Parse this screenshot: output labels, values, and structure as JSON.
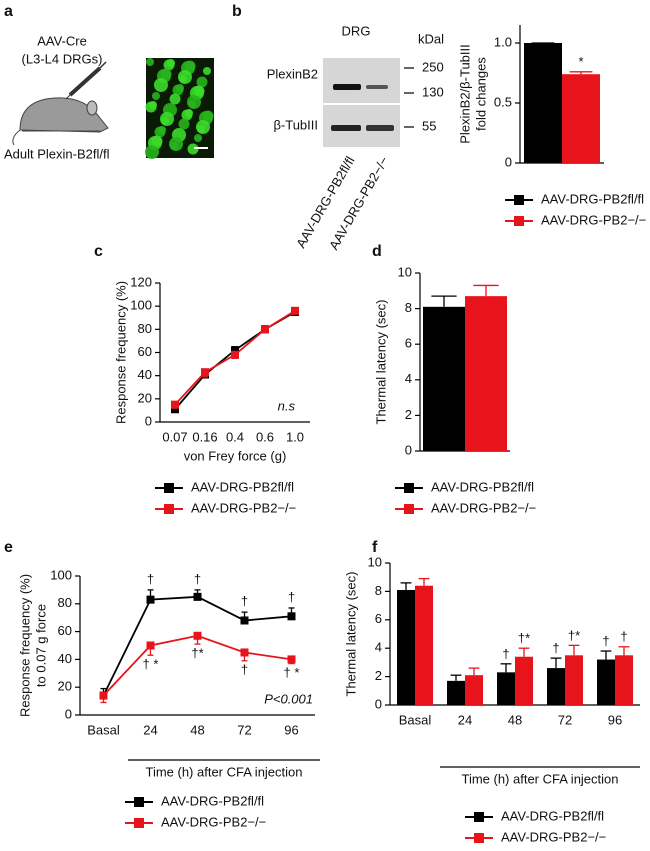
{
  "panel_a": {
    "label": "a",
    "lines": [
      "AAV-Cre",
      "(L3-L4 DRGs)"
    ],
    "caption": "Adult Plexin-B2fl/fl"
  },
  "blot": {
    "label": "b",
    "title": "DRG",
    "unit": "kDal",
    "bands": [
      "PlexinB2",
      "β-TubIII"
    ],
    "sizes": [
      "250",
      "130",
      "55"
    ],
    "lanes": [
      "AAV-DRG-PB2fl/fl",
      "AAV-DRG-PB2−/−"
    ]
  },
  "chart_data": [
    {
      "type": "bar",
      "categories": [
        null
      ],
      "ylabel": [
        "PlexinB2/β-TubIII",
        "fold changes"
      ],
      "ylim": [
        0,
        1.15
      ],
      "yticks": [
        0,
        0.5,
        {
          "value": 1,
          "label": "1.0"
        }
      ],
      "series": [
        {
          "name": "AAV-DRG-PB2fl/fl",
          "color": "#000000",
          "values": [
            1.0
          ],
          "errors": [
            0
          ]
        },
        {
          "name": "AAV-DRG-PB2−/−",
          "color": "#e8141b",
          "values": [
            0.74
          ],
          "errors": [
            0.02
          ],
          "markers": [
            "*"
          ]
        }
      ]
    },
    {
      "type": "line",
      "panel": "c",
      "categories": [
        "0.07",
        "0.16",
        "0.4",
        "0.6",
        "1.0"
      ],
      "xlabel": "von Frey force (g)",
      "ylabel": [
        "Response frequency (%)"
      ],
      "annotation": "n.s",
      "ylim": [
        0,
        120
      ],
      "yticks": [
        0,
        20,
        40,
        60,
        80,
        100,
        120
      ],
      "series": [
        {
          "name": "AAV-DRG-PB2fl/fl",
          "color": "#000000",
          "values": [
            11,
            41,
            62,
            80,
            95
          ],
          "errors": [
            3,
            4,
            3,
            3,
            2
          ]
        },
        {
          "name": "AAV-DRG-PB2−/−",
          "color": "#e8141b",
          "values": [
            15,
            43,
            58,
            80,
            96
          ],
          "errors": [
            3,
            4,
            3,
            3,
            2
          ]
        }
      ]
    },
    {
      "type": "bar",
      "panel": "d",
      "categories": [
        null
      ],
      "ylabel": [
        "Thermal latency (sec)"
      ],
      "ylim": [
        0,
        10
      ],
      "yticks": [
        0,
        2,
        4,
        6,
        8,
        10
      ],
      "series": [
        {
          "name": "AAV-DRG-PB2fl/fl",
          "color": "#000000",
          "values": [
            8.1
          ],
          "errors": [
            0.6
          ]
        },
        {
          "name": "AAV-DRG-PB2−/−",
          "color": "#e8141b",
          "values": [
            8.7
          ],
          "errors": [
            0.6
          ]
        }
      ]
    },
    {
      "type": "line",
      "panel": "e",
      "categories": [
        "Basal",
        "24",
        "48",
        "72",
        "96"
      ],
      "xlabel": "Time (h) after CFA injection",
      "ylabel": [
        "Response frequency (%)",
        "to 0.07 g force"
      ],
      "annotation": "P<0.001",
      "ylim": [
        0,
        100
      ],
      "yticks": [
        0,
        20,
        40,
        60,
        80,
        100
      ],
      "series": [
        {
          "name": "AAV-DRG-PB2fl/fl",
          "color": "#000000",
          "values": [
            14,
            83,
            85,
            68,
            71
          ],
          "errors": [
            5,
            7,
            5,
            6,
            6
          ],
          "markers": [
            null,
            "†",
            "†",
            "†",
            "†"
          ]
        },
        {
          "name": "AAV-DRG-PB2−/−",
          "color": "#e8141b",
          "values": [
            14,
            50,
            57,
            45,
            40
          ],
          "errors": [
            5,
            7,
            6,
            6,
            3
          ],
          "markers": [
            null,
            "† *",
            "†*",
            "†",
            "† *"
          ]
        }
      ]
    },
    {
      "type": "bar",
      "panel": "f",
      "categories": [
        "Basal",
        "24",
        "48",
        "72",
        "96"
      ],
      "xlabel": "Time (h) after CFA injection",
      "ylabel": [
        "Thermal latency (sec)"
      ],
      "ylim": [
        0,
        10
      ],
      "yticks": [
        0,
        2,
        4,
        6,
        8,
        10
      ],
      "series": [
        {
          "name": "AAV-DRG-PB2fl/fl",
          "color": "#000000",
          "values": [
            8.1,
            1.7,
            2.3,
            2.6,
            3.2
          ],
          "errors": [
            0.5,
            0.4,
            0.6,
            0.7,
            0.6
          ],
          "markers": [
            null,
            null,
            "†",
            "†",
            "†"
          ]
        },
        {
          "name": "AAV-DRG-PB2−/−",
          "color": "#e8141b",
          "values": [
            8.4,
            2.1,
            3.4,
            3.5,
            3.5
          ],
          "errors": [
            0.5,
            0.5,
            0.6,
            0.7,
            0.6
          ],
          "markers": [
            null,
            null,
            "†*",
            "†*",
            "†"
          ]
        }
      ]
    }
  ]
}
